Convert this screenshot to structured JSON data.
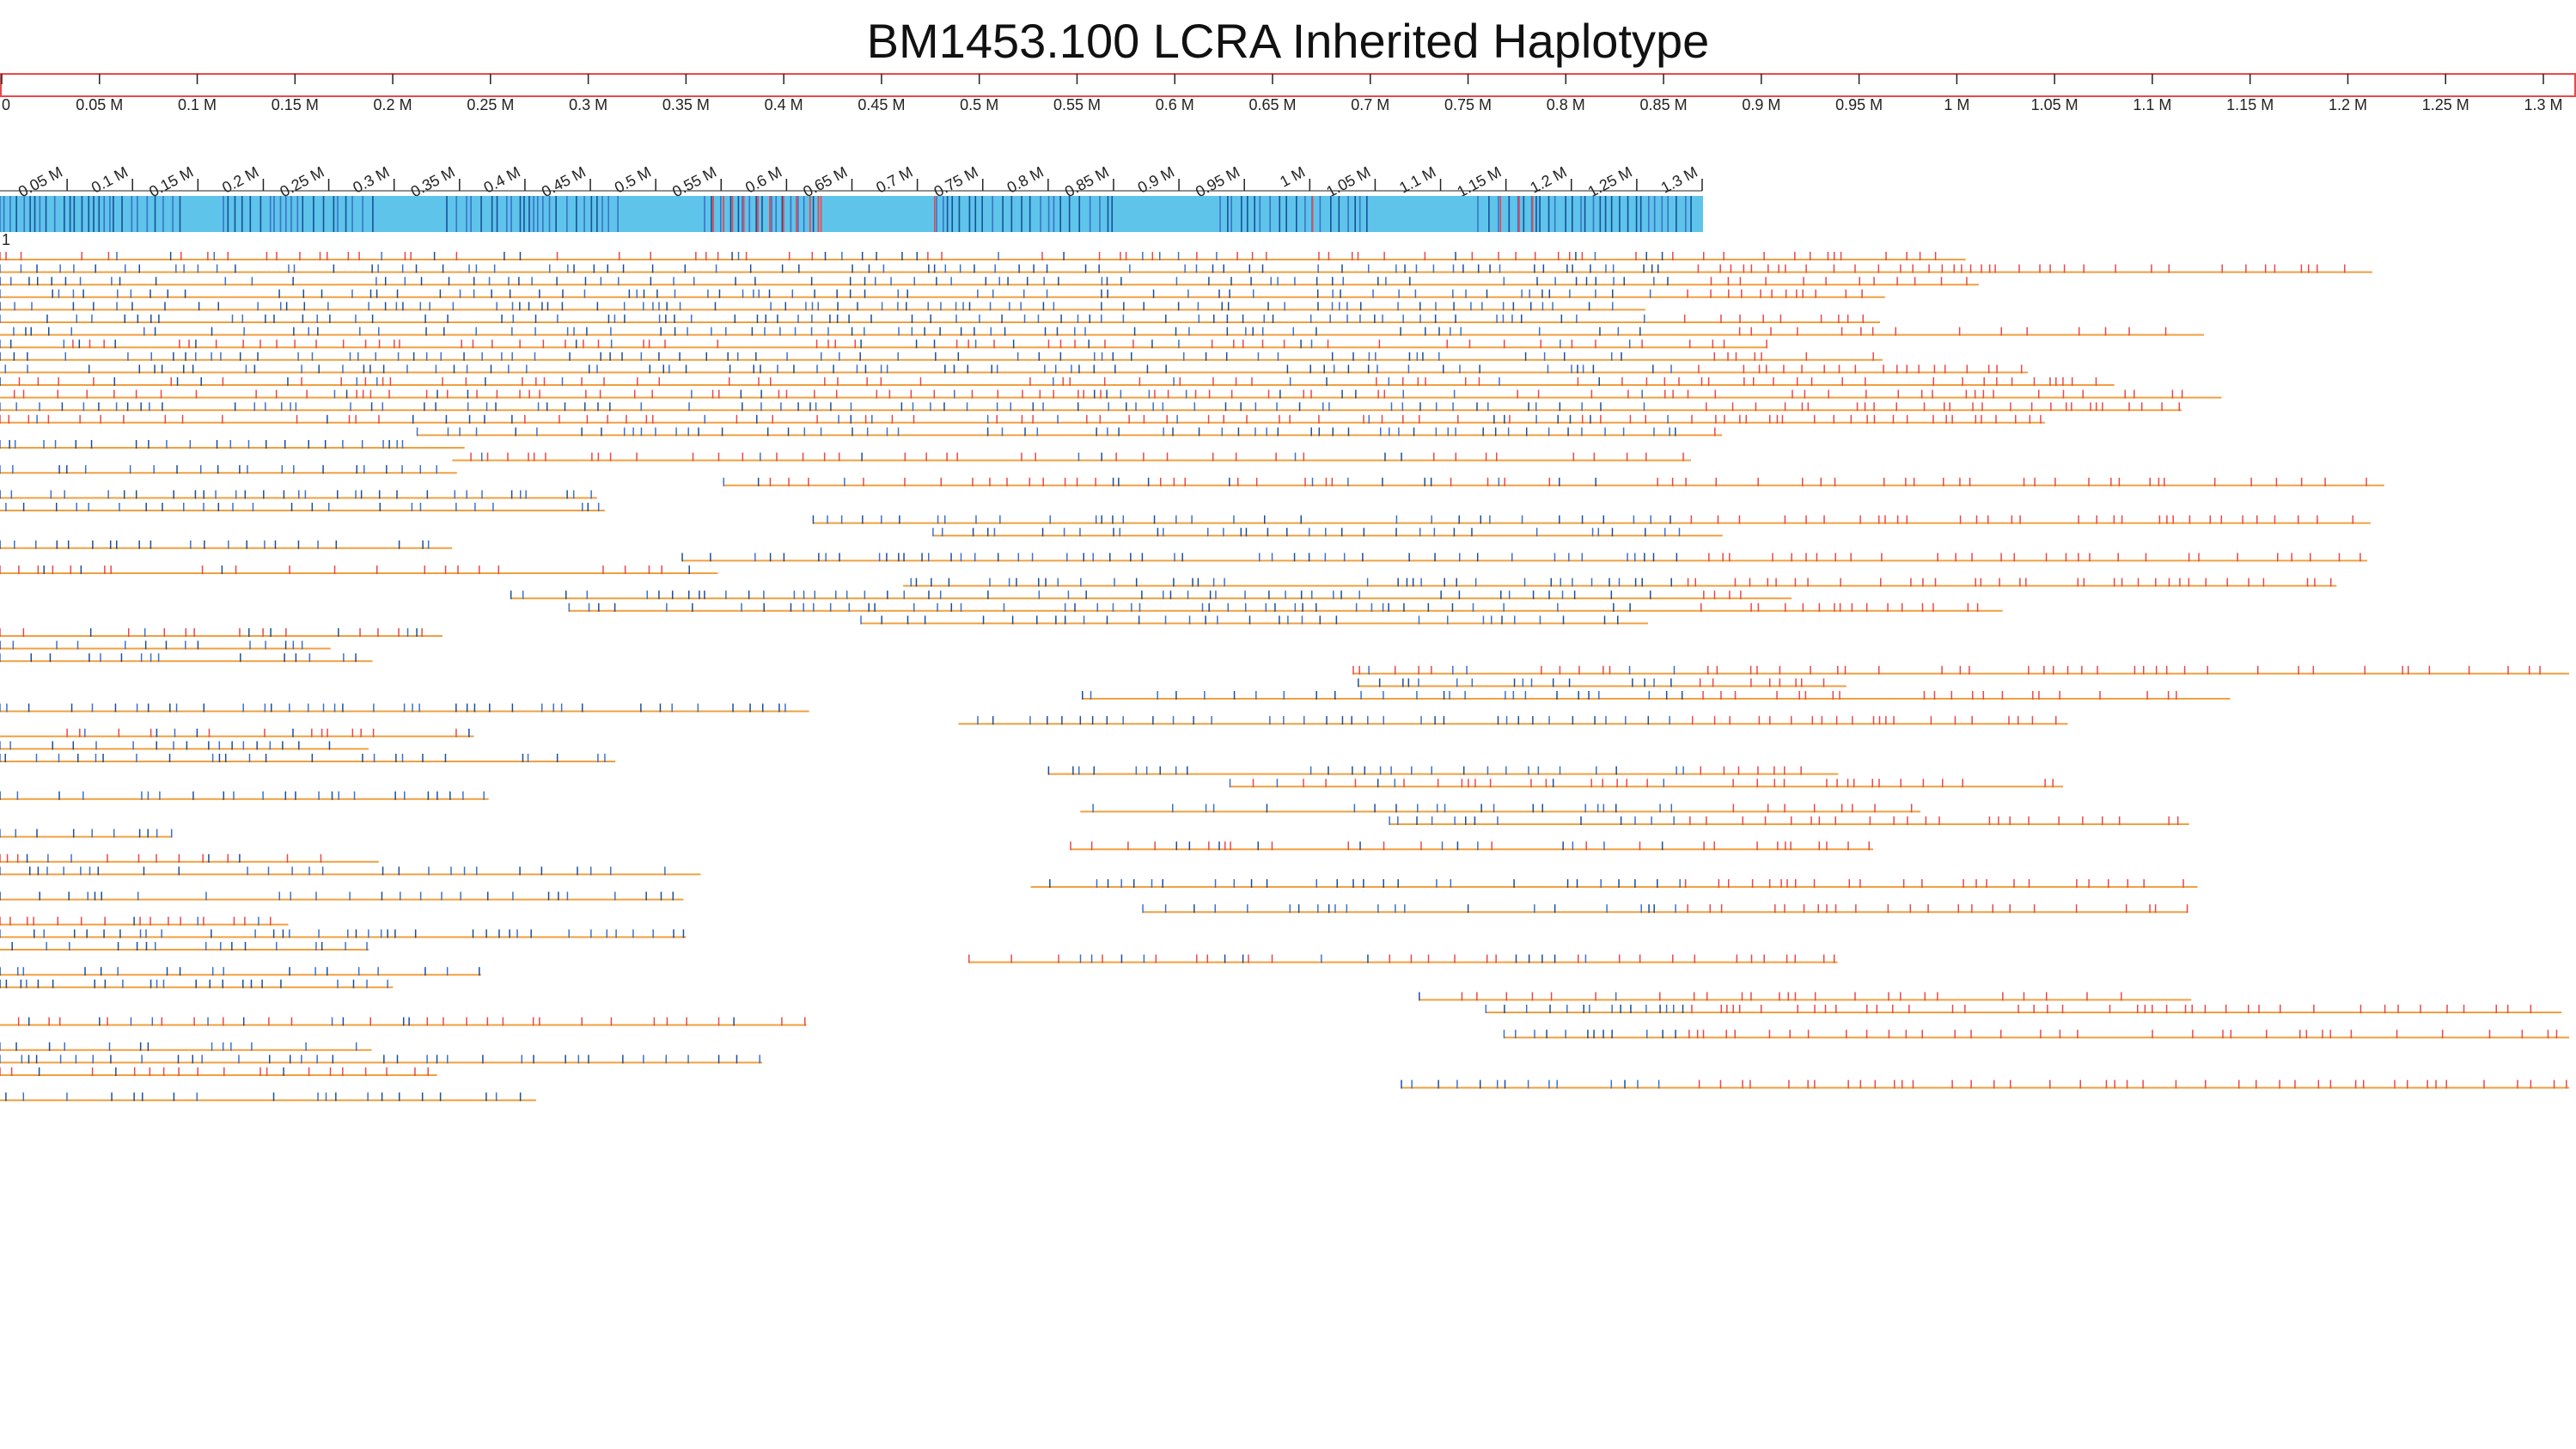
{
  "page": {
    "title": "BM1453.100 LCRA Inherited Haplotype"
  },
  "colors": {
    "ruler_border": "#e8484a",
    "haplotype_bar": "#5ec4ea",
    "snp_dark": "#1a4f9a",
    "snp_blue": "#3d72c8",
    "snp_red": "#e8484a",
    "read_line": "#f0a040",
    "tick": "#222222"
  },
  "scale": {
    "unit": "M",
    "top_ruler_labels": [
      "0",
      "0.05 M",
      "0.1 M",
      "0.15 M",
      "0.2 M",
      "0.25 M",
      "0.3 M",
      "0.35 M",
      "0.4 M",
      "0.45 M",
      "0.5 M",
      "0.55 M",
      "0.6 M",
      "0.65 M",
      "0.7 M",
      "0.75 M",
      "0.8 M",
      "0.85 M",
      "0.9 M",
      "0.95 M",
      "1 M",
      "1.05 M",
      "1.1 M",
      "1.15 M",
      "1.2 M",
      "1.25 M",
      "1.3 M"
    ],
    "top_ruler_range_M": [
      0,
      1.3
    ],
    "zoom_ruler_labels": [
      "0.05 M",
      "0.1 M",
      "0.15 M",
      "0.2 M",
      "0.25 M",
      "0.3 M",
      "0.35 M",
      "0.4 M",
      "0.45 M",
      "0.5 M",
      "0.55 M",
      "0.6 M",
      "0.65 M",
      "0.7 M",
      "0.75 M",
      "0.8 M",
      "0.85 M",
      "0.9 M",
      "0.95 M",
      "1 M",
      "1.05 M",
      "1.1 M",
      "1.15 M",
      "1.2 M",
      "1.25 M",
      "1.3 M"
    ],
    "zoom_ruler_range_M": [
      0,
      1.3
    ]
  },
  "track": {
    "row_label": "1",
    "read_count": 68
  }
}
